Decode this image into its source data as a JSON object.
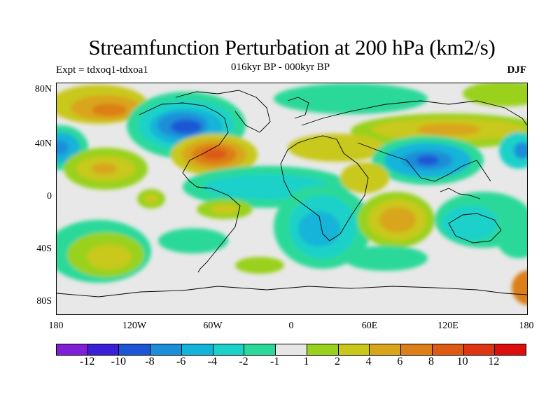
{
  "title": "Streamfunction Perturbation at 200 hPa (km2/s)",
  "left_subtitle": "Expt = tdxoq1-tdxoa1",
  "center_subtitle": "016kyr BP - 000kyr BP",
  "right_subtitle": "DJF",
  "lat_labels": [
    "80N",
    "40N",
    "0",
    "40S",
    "80S"
  ],
  "lon_labels": [
    "180",
    "120W",
    "60W",
    "0",
    "60E",
    "120E",
    "180"
  ],
  "colorbar": {
    "colors": [
      "#7f1fd6",
      "#3a1fd6",
      "#1d56d4",
      "#1d8ed9",
      "#13b4d9",
      "#1ad1c9",
      "#2ad99a",
      "#e6e6e6",
      "#99d11c",
      "#c9c81a",
      "#d9a51a",
      "#dc7f17",
      "#dd5a12",
      "#dd3412",
      "#dd0d0d"
    ],
    "labels": [
      "-12",
      "-10",
      "-8",
      "-6",
      "-4",
      "-2",
      "-1",
      "1",
      "2",
      "4",
      "6",
      "8",
      "10",
      "12"
    ]
  },
  "colors": {
    "ocean_background": "#e8e8e8",
    "coastline": "#000000"
  }
}
